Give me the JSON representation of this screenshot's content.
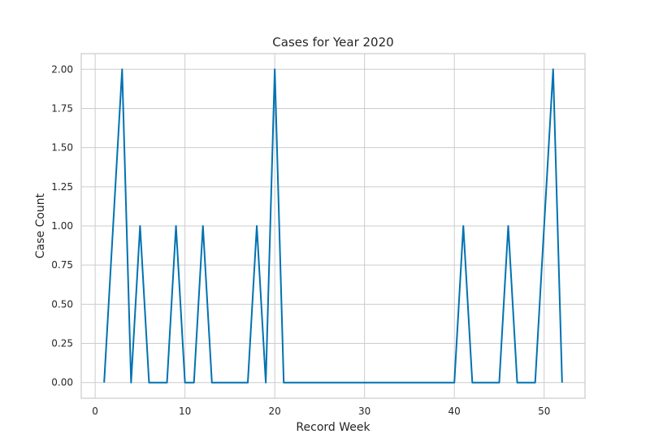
{
  "chart_data": {
    "type": "line",
    "title": "Cases for Year 2020",
    "xlabel": "Record Week",
    "ylabel": "Case Count",
    "xlim": [
      -1.55,
      54.55
    ],
    "ylim": [
      -0.1,
      2.1
    ],
    "xticks": [
      0,
      10,
      20,
      30,
      40,
      50
    ],
    "xtick_labels": [
      "0",
      "10",
      "20",
      "30",
      "40",
      "50"
    ],
    "yticks": [
      0,
      0.25,
      0.5,
      0.75,
      1.0,
      1.25,
      1.5,
      1.75,
      2.0
    ],
    "ytick_labels": [
      "0.00",
      "0.25",
      "0.50",
      "0.75",
      "1.00",
      "1.25",
      "1.50",
      "1.75",
      "2.00"
    ],
    "grid": true,
    "series": [
      {
        "color": "#0072B2",
        "x": [
          1,
          2,
          3,
          4,
          5,
          6,
          7,
          8,
          9,
          10,
          11,
          12,
          13,
          14,
          15,
          16,
          17,
          18,
          19,
          20,
          21,
          22,
          23,
          24,
          25,
          26,
          27,
          28,
          29,
          30,
          31,
          32,
          33,
          34,
          35,
          36,
          37,
          38,
          39,
          40,
          41,
          42,
          43,
          44,
          45,
          46,
          47,
          48,
          49,
          50,
          51,
          52
        ],
        "values": [
          0,
          1,
          2,
          0,
          1,
          0,
          0,
          0,
          1,
          0,
          0,
          1,
          0,
          0,
          0,
          0,
          0,
          1,
          0,
          2,
          0,
          0,
          0,
          0,
          0,
          0,
          0,
          0,
          0,
          0,
          0,
          0,
          0,
          0,
          0,
          0,
          0,
          0,
          0,
          0,
          1,
          0,
          0,
          0,
          0,
          1,
          0,
          0,
          0,
          1,
          2,
          0
        ]
      }
    ]
  }
}
